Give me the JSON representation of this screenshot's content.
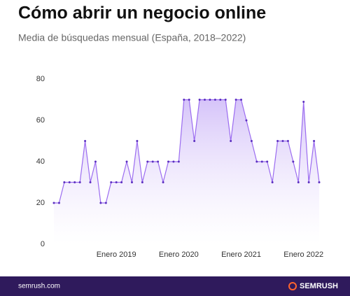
{
  "chart_data": {
    "type": "area",
    "title": "Cómo abrir un negocio online",
    "subtitle": "Media de búsquedas mensual (España, 2018–2022)",
    "categories": [
      null,
      null,
      null,
      null,
      null,
      null,
      null,
      null,
      null,
      null,
      null,
      null,
      "Enero 2019",
      null,
      null,
      null,
      null,
      null,
      null,
      null,
      null,
      null,
      null,
      null,
      "Enero 2020",
      null,
      null,
      null,
      null,
      null,
      null,
      null,
      null,
      null,
      null,
      null,
      "Enero 2021",
      null,
      null,
      null,
      null,
      null,
      null,
      null,
      null,
      null,
      null,
      null,
      "Enero 2022",
      null,
      null,
      null
    ],
    "series": [
      {
        "name": null,
        "color": "#9b6cf0",
        "values": [
          20,
          20,
          30,
          30,
          30,
          30,
          50,
          30,
          40,
          20,
          20,
          30,
          30,
          30,
          40,
          30,
          50,
          30,
          40,
          40,
          40,
          30,
          40,
          40,
          40,
          70,
          70,
          50,
          70,
          70,
          70,
          70,
          70,
          70,
          50,
          70,
          70,
          60,
          50,
          40,
          40,
          40,
          30,
          50,
          50,
          50,
          40,
          30,
          69,
          30,
          50,
          30
        ]
      }
    ],
    "ylim": [
      0,
      80
    ],
    "yticks": [
      0,
      20,
      40,
      60,
      80
    ],
    "grid": false
  },
  "footer": {
    "site": "semrush.com",
    "brand": "SEMRUSH"
  }
}
